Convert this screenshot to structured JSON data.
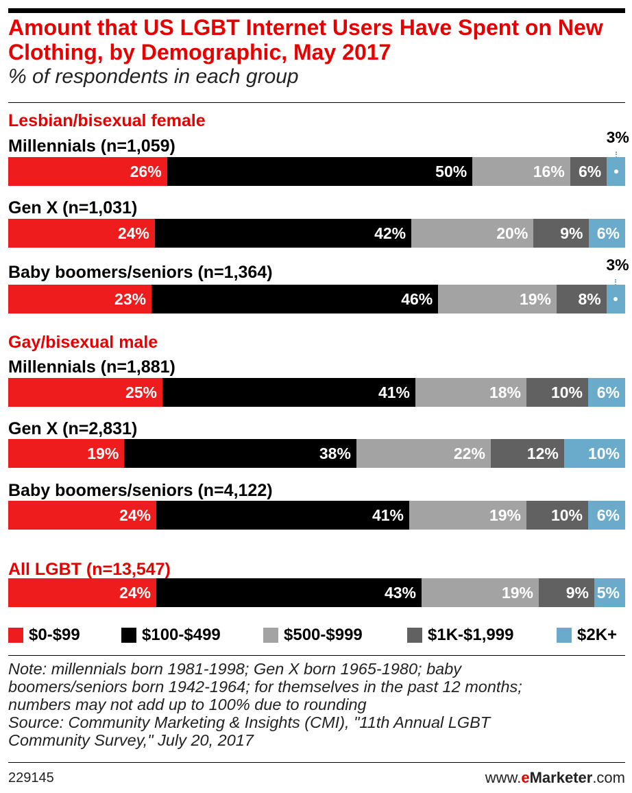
{
  "title": "Amount that US LGBT Internet Users Have Spent on New Clothing, by Demographic, May 2017",
  "subtitle": "% of respondents in each group",
  "chart_data": {
    "type": "bar",
    "orientation": "horizontal",
    "stacked": true,
    "title": "Amount that US LGBT Internet Users Have Spent on New Clothing, by Demographic, May 2017",
    "subtitle": "% of respondents in each group",
    "legend_position": "bottom",
    "grid": false,
    "series_names": [
      "$0-$99",
      "$100-$499",
      "$500-$999",
      "$1K-$1,999",
      "$2K+"
    ],
    "colors": [
      "#ee1c1c",
      "#000000",
      "#a3a3a3",
      "#616161",
      "#6aabcc"
    ],
    "groups": [
      {
        "label": "Lesbian/bisexual female",
        "rows": [
          {
            "label": "Millennials (n=1,059)",
            "values": [
              26,
              50,
              16,
              6,
              3
            ]
          },
          {
            "label": "Gen X (n=1,031)",
            "values": [
              24,
              42,
              20,
              9,
              6
            ]
          },
          {
            "label": "Baby boomers/seniors (n=1,364)",
            "values": [
              23,
              46,
              19,
              8,
              3
            ]
          }
        ]
      },
      {
        "label": "Gay/bisexual male",
        "rows": [
          {
            "label": "Millennials (n=1,881)",
            "values": [
              25,
              41,
              18,
              10,
              6
            ]
          },
          {
            "label": "Gen X (n=2,831)",
            "values": [
              19,
              38,
              22,
              12,
              10
            ]
          },
          {
            "label": "Baby boomers/seniors (n=4,122)",
            "values": [
              24,
              41,
              19,
              10,
              6
            ]
          }
        ]
      },
      {
        "label": "All LGBT (n=13,547)",
        "rows": [
          {
            "label": "",
            "values": [
              24,
              43,
              19,
              9,
              5
            ]
          }
        ]
      }
    ]
  },
  "legend": [
    "$0-$99",
    "$100-$499",
    "$500-$999",
    "$1K-$1,999",
    "$2K+"
  ],
  "note": [
    "Note: millennials born 1981-1998; Gen X born 1965-1980; baby",
    "boomers/seniors born 1942-1964; for themselves in the past 12 months;",
    "numbers may not add up to 100% due to rounding",
    "Source: Community Marketing & Insights (CMI), \"11th Annual LGBT",
    "Community Survey,\" July 20, 2017"
  ],
  "footer": {
    "id": "229145",
    "brand_prefix": "www.",
    "brand_e": "e",
    "brand_marketer": "Marketer",
    "brand_suffix": ".com"
  }
}
